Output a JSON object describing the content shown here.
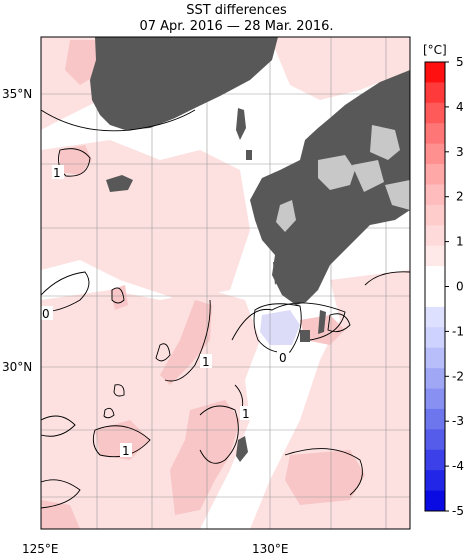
{
  "title": "SST differences",
  "subtitle": "07 Apr. 2016 — 28 Mar. 2016.",
  "unit_label": "[°C]",
  "lat_labels": [
    "35°N",
    "30°N"
  ],
  "lon_labels": [
    "125°E",
    "130°E"
  ],
  "contour_labels": [
    "1",
    "0",
    "1",
    "0",
    "1",
    "1"
  ],
  "colorbar": {
    "ticks": [
      "5",
      "4",
      "3",
      "2",
      "1",
      "0",
      "-1",
      "-2",
      "-3",
      "-4",
      "-5"
    ],
    "colors": [
      "#ff1010",
      "#ff3a3a",
      "#ff5a5a",
      "#ff7676",
      "#ff9090",
      "#ffa8a8",
      "#ffbcbc",
      "#ffcccc",
      "#ffdada",
      "#ffe8e8",
      "#ffffff",
      "#ffffff",
      "#dde0ff",
      "#cdd2ff",
      "#b8befa",
      "#a0a8f6",
      "#8890f2",
      "#6e76ee",
      "#565cea",
      "#3c40e8",
      "#2226e6",
      "#0a0ae2"
    ]
  },
  "colors": {
    "land": "#585858",
    "lake": "#c8c8c8",
    "pink": "#fde0e0",
    "pink2": "#f9c8c8",
    "blue": "#dcdcf8"
  }
}
